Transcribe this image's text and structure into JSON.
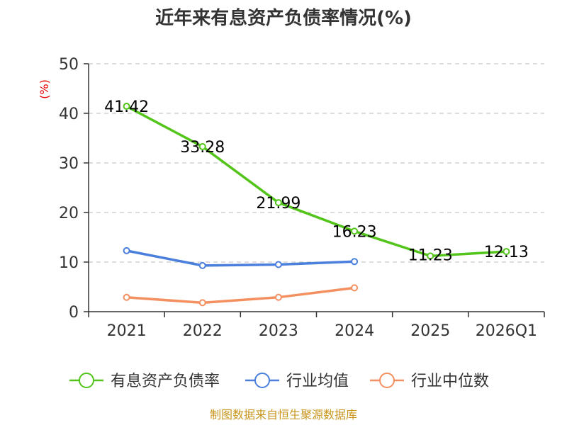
{
  "chart_data": {
    "type": "line",
    "title": "近年来有息资产负债率情况(%)",
    "ylabel": "(%)",
    "xlabel": "",
    "categories": [
      "2021",
      "2022",
      "2023",
      "2024",
      "2025",
      "2026Q1"
    ],
    "yticks": [
      "0",
      "10",
      "20",
      "30",
      "40",
      "50"
    ],
    "ylim": [
      0,
      50
    ],
    "grid": true,
    "legend_position": "bottom",
    "series": [
      {
        "name": "有息资产负债率",
        "color": "#52c41a",
        "values": [
          41.42,
          33.28,
          21.99,
          16.23,
          11.23,
          12.13
        ],
        "labels": [
          "41.42",
          "33.28",
          "21.99",
          "16.23",
          "11.23",
          "12.13"
        ]
      },
      {
        "name": "行业均值",
        "color": "#4a7fdc",
        "values": [
          12.3,
          9.3,
          9.5,
          10.1,
          null,
          null
        ]
      },
      {
        "name": "行业中位数",
        "color": "#f49060",
        "values": [
          2.9,
          1.8,
          2.9,
          4.8,
          null,
          null
        ]
      }
    ],
    "source": "制图数据来自恒生聚源数据库"
  }
}
